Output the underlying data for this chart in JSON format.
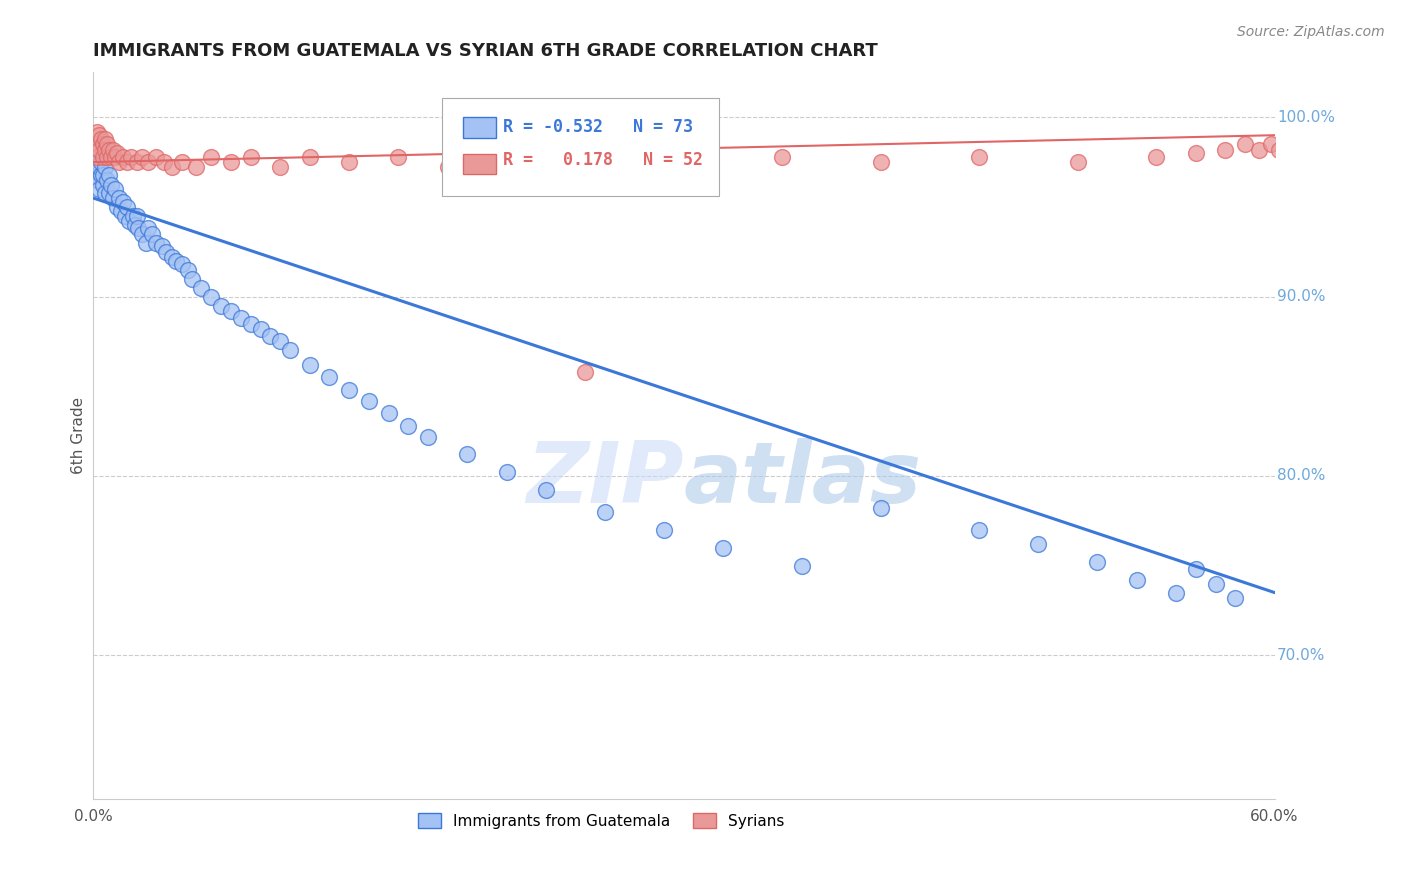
{
  "title": "IMMIGRANTS FROM GUATEMALA VS SYRIAN 6TH GRADE CORRELATION CHART",
  "source": "Source: ZipAtlas.com",
  "ylabel": "6th Grade",
  "xlim": [
    0.0,
    0.6
  ],
  "ylim": [
    0.62,
    1.025
  ],
  "xticks": [
    0.0,
    0.1,
    0.2,
    0.3,
    0.4,
    0.5,
    0.6
  ],
  "xtick_labels": [
    "0.0%",
    "",
    "",
    "",
    "",
    "",
    "60.0%"
  ],
  "ytick_labels_right": [
    "100.0%",
    "90.0%",
    "80.0%",
    "70.0%"
  ],
  "ytick_vals_right": [
    1.0,
    0.9,
    0.8,
    0.7
  ],
  "R_blue": -0.532,
  "N_blue": 73,
  "R_pink": 0.178,
  "N_pink": 52,
  "blue_color": "#a4c2f4",
  "pink_color": "#ea9999",
  "blue_line_color": "#3c78d8",
  "pink_line_color": "#e06666",
  "watermark_color": "#c9daf8",
  "blue_trend_x": [
    0.0,
    0.6
  ],
  "blue_trend_y": [
    0.955,
    0.735
  ],
  "pink_trend_x": [
    0.0,
    0.6
  ],
  "pink_trend_y": [
    0.975,
    0.99
  ],
  "blue_scatter_x": [
    0.001,
    0.002,
    0.002,
    0.003,
    0.003,
    0.004,
    0.004,
    0.005,
    0.005,
    0.006,
    0.006,
    0.007,
    0.008,
    0.008,
    0.009,
    0.01,
    0.011,
    0.012,
    0.013,
    0.014,
    0.015,
    0.016,
    0.017,
    0.018,
    0.02,
    0.021,
    0.022,
    0.023,
    0.025,
    0.027,
    0.028,
    0.03,
    0.032,
    0.035,
    0.037,
    0.04,
    0.042,
    0.045,
    0.048,
    0.05,
    0.055,
    0.06,
    0.065,
    0.07,
    0.075,
    0.08,
    0.085,
    0.09,
    0.095,
    0.1,
    0.11,
    0.12,
    0.13,
    0.14,
    0.15,
    0.16,
    0.17,
    0.19,
    0.21,
    0.23,
    0.26,
    0.29,
    0.32,
    0.36,
    0.4,
    0.45,
    0.48,
    0.51,
    0.53,
    0.55,
    0.56,
    0.57,
    0.58
  ],
  "blue_scatter_y": [
    0.97,
    0.965,
    0.975,
    0.96,
    0.972,
    0.968,
    0.975,
    0.962,
    0.968,
    0.958,
    0.972,
    0.965,
    0.958,
    0.968,
    0.962,
    0.955,
    0.96,
    0.95,
    0.955,
    0.948,
    0.953,
    0.945,
    0.95,
    0.942,
    0.945,
    0.94,
    0.945,
    0.938,
    0.935,
    0.93,
    0.938,
    0.935,
    0.93,
    0.928,
    0.925,
    0.922,
    0.92,
    0.918,
    0.915,
    0.91,
    0.905,
    0.9,
    0.895,
    0.892,
    0.888,
    0.885,
    0.882,
    0.878,
    0.875,
    0.87,
    0.862,
    0.855,
    0.848,
    0.842,
    0.835,
    0.828,
    0.822,
    0.812,
    0.802,
    0.792,
    0.78,
    0.77,
    0.76,
    0.75,
    0.782,
    0.77,
    0.762,
    0.752,
    0.742,
    0.735,
    0.748,
    0.74,
    0.732
  ],
  "pink_scatter_x": [
    0.001,
    0.002,
    0.002,
    0.003,
    0.003,
    0.004,
    0.005,
    0.005,
    0.006,
    0.006,
    0.007,
    0.007,
    0.008,
    0.009,
    0.01,
    0.011,
    0.012,
    0.013,
    0.015,
    0.017,
    0.019,
    0.022,
    0.025,
    0.028,
    0.032,
    0.036,
    0.04,
    0.045,
    0.052,
    0.06,
    0.07,
    0.08,
    0.095,
    0.11,
    0.13,
    0.155,
    0.18,
    0.21,
    0.25,
    0.3,
    0.35,
    0.4,
    0.45,
    0.5,
    0.54,
    0.56,
    0.575,
    0.585,
    0.592,
    0.598,
    0.602,
    0.608
  ],
  "pink_scatter_y": [
    0.985,
    0.992,
    0.978,
    0.99,
    0.982,
    0.988,
    0.985,
    0.978,
    0.988,
    0.982,
    0.985,
    0.978,
    0.982,
    0.978,
    0.982,
    0.978,
    0.98,
    0.975,
    0.978,
    0.975,
    0.978,
    0.975,
    0.978,
    0.975,
    0.978,
    0.975,
    0.972,
    0.975,
    0.972,
    0.978,
    0.975,
    0.978,
    0.972,
    0.978,
    0.975,
    0.978,
    0.972,
    0.978,
    0.858,
    0.975,
    0.978,
    0.975,
    0.978,
    0.975,
    0.978,
    0.98,
    0.982,
    0.985,
    0.982,
    0.985,
    0.982,
    0.985
  ]
}
